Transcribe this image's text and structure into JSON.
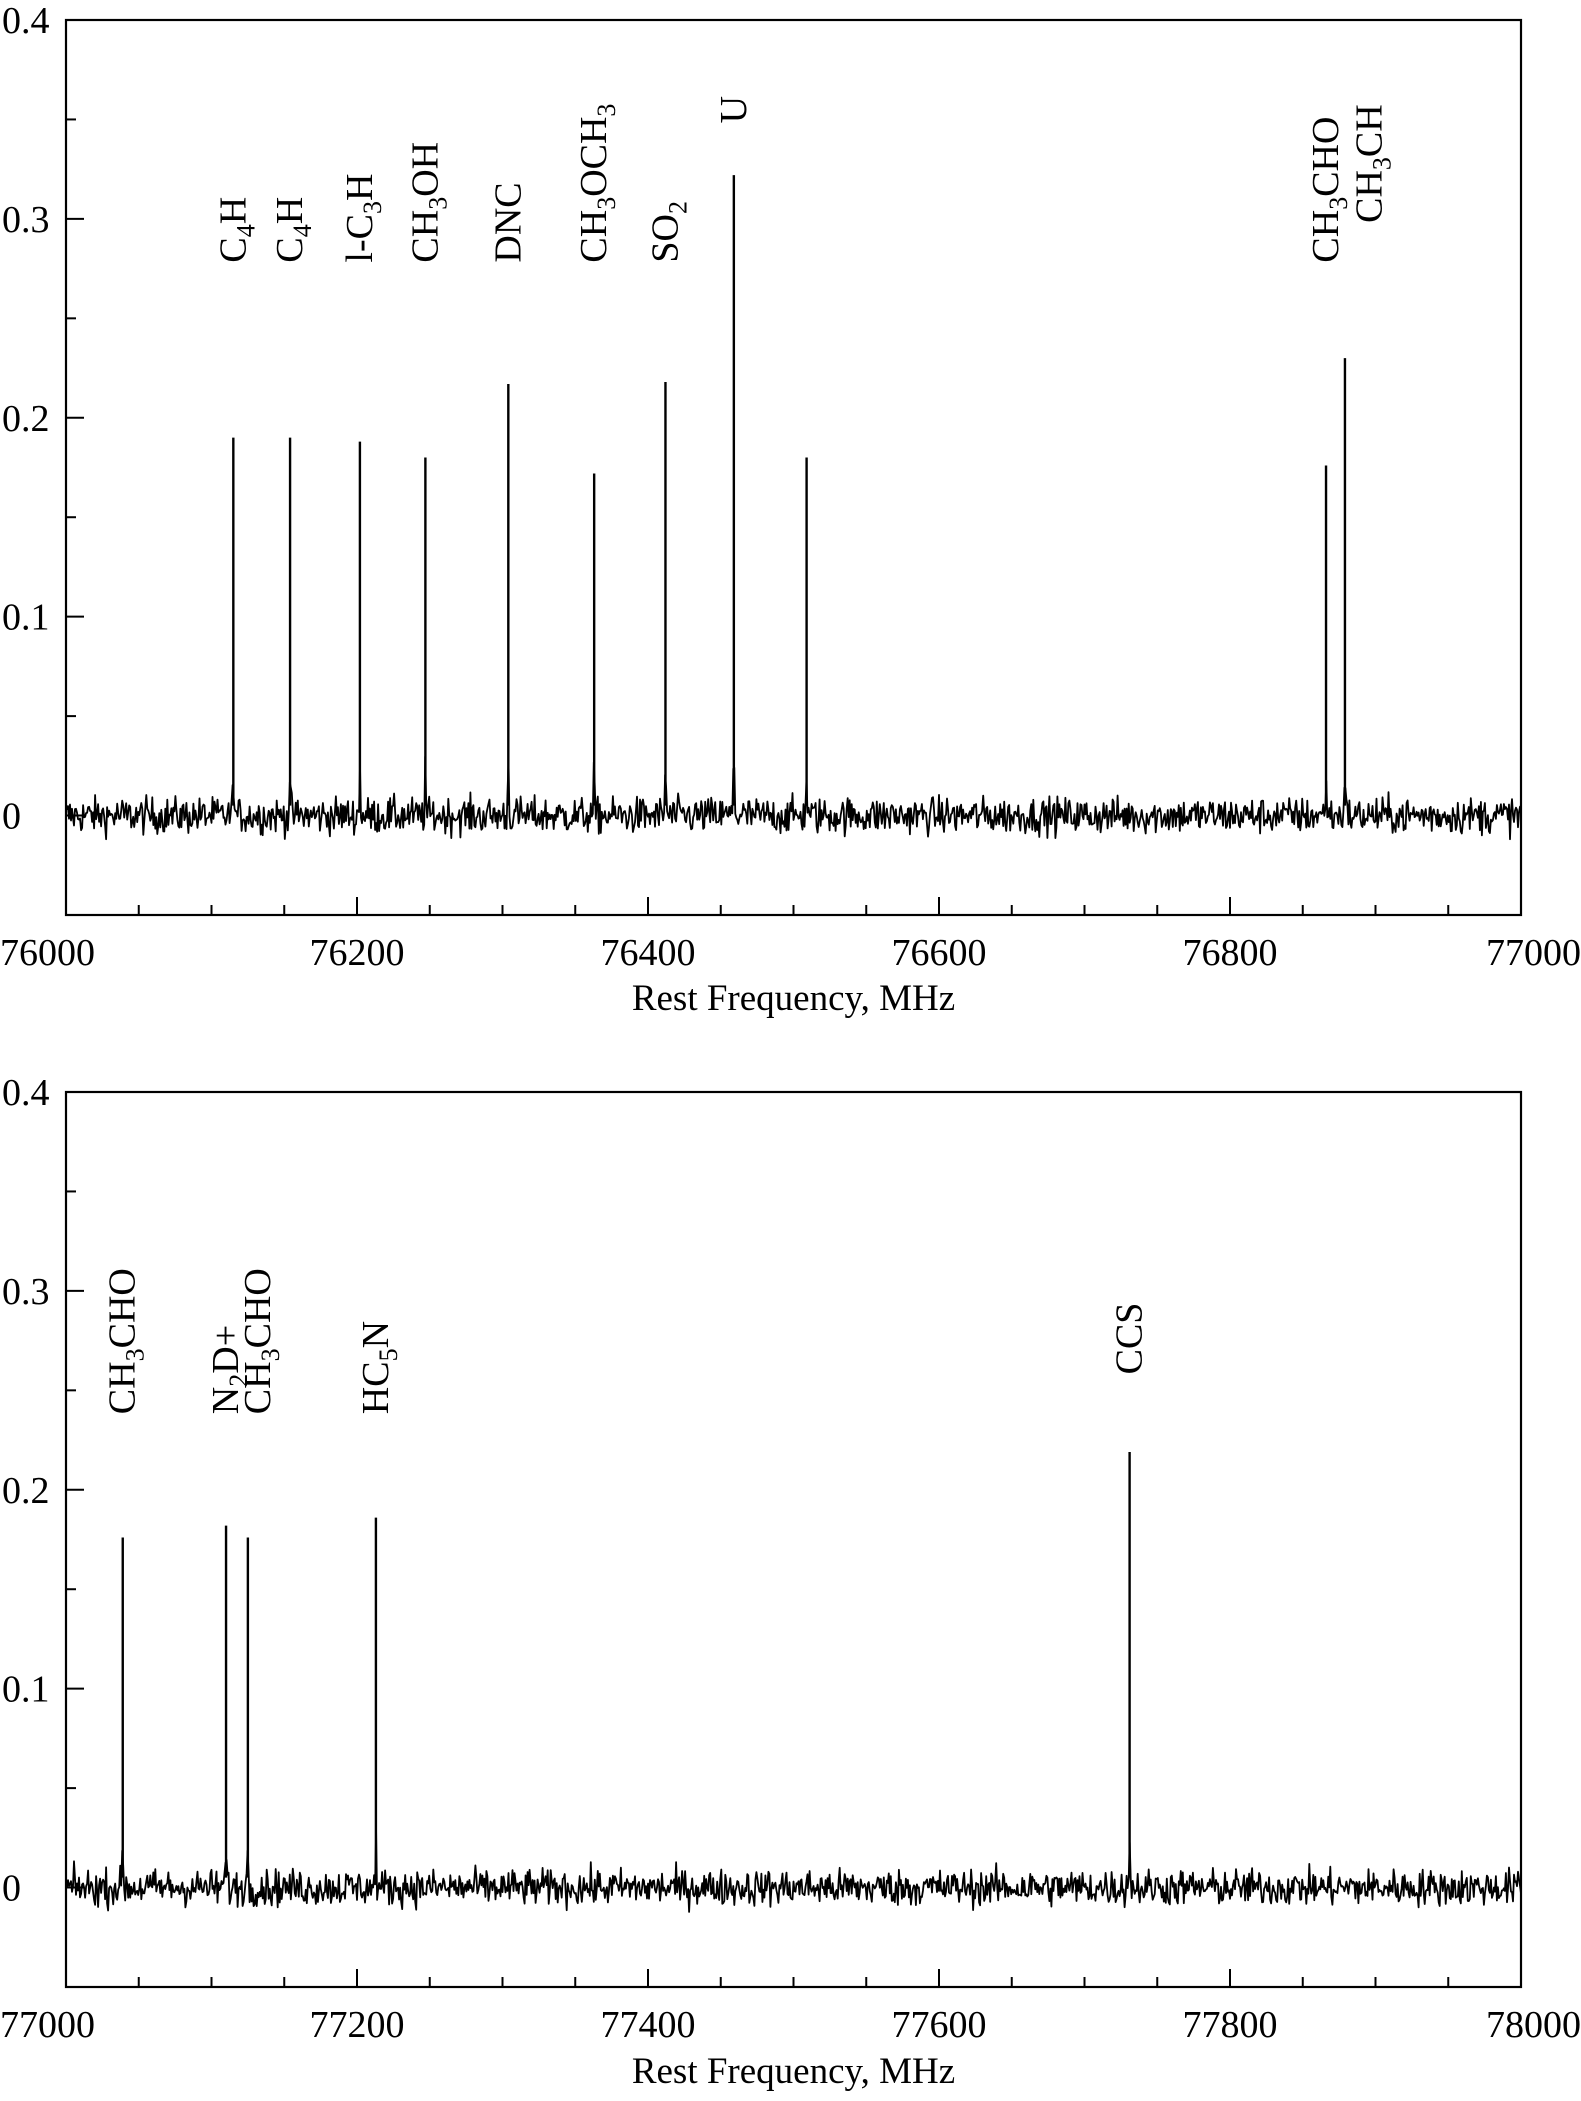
{
  "chart_data": [
    {
      "type": "line",
      "title": "",
      "xlabel": "Rest Frequency, MHz",
      "ylabel": "",
      "xlim": [
        76000,
        77000
      ],
      "ylim": [
        -0.05,
        0.4
      ],
      "x_ticks": [
        "76000",
        "76200",
        "76400",
        "76600",
        "76800",
        "77000"
      ],
      "y_ticks": [
        "0.4",
        "0.3",
        "0.2",
        "0.1",
        "0"
      ],
      "grid": false,
      "lines": [
        {
          "x": 76115,
          "peak": 0.19
        },
        {
          "x": 76154,
          "peak": 0.19
        },
        {
          "x": 76202,
          "peak": 0.188
        },
        {
          "x": 76247,
          "peak": 0.18
        },
        {
          "x": 76304,
          "peak": 0.217
        },
        {
          "x": 76363,
          "peak": 0.172
        },
        {
          "x": 76412,
          "peak": 0.218
        },
        {
          "x": 76459,
          "peak": 0.322
        },
        {
          "x": 76509,
          "peak": 0.18
        },
        {
          "x": 76866,
          "peak": 0.176
        },
        {
          "x": 76879,
          "peak": 0.23
        }
      ],
      "labels": [
        {
          "x": 76115,
          "y": 0.278,
          "parts": [
            {
              "t": "C"
            },
            {
              "t": "4",
              "sub": true
            },
            {
              "t": "H"
            }
          ]
        },
        {
          "x": 76154,
          "y": 0.278,
          "parts": [
            {
              "t": "C"
            },
            {
              "t": "4",
              "sub": true
            },
            {
              "t": "H"
            }
          ]
        },
        {
          "x": 76202,
          "y": 0.278,
          "parts": [
            {
              "t": "l-C"
            },
            {
              "t": "3",
              "sub": true
            },
            {
              "t": "H"
            }
          ]
        },
        {
          "x": 76247,
          "y": 0.278,
          "parts": [
            {
              "t": "CH"
            },
            {
              "t": "3",
              "sub": true
            },
            {
              "t": "OH"
            }
          ]
        },
        {
          "x": 76304,
          "y": 0.278,
          "parts": [
            {
              "t": "DNC"
            }
          ]
        },
        {
          "x": 76363,
          "y": 0.278,
          "parts": [
            {
              "t": "CH"
            },
            {
              "t": "3",
              "sub": true
            },
            {
              "t": "OCH"
            },
            {
              "t": "3",
              "sub": true
            }
          ]
        },
        {
          "x": 76412,
          "y": 0.278,
          "parts": [
            {
              "t": "SO"
            },
            {
              "t": "2",
              "sub": true
            }
          ]
        },
        {
          "x": 76459,
          "y": 0.348,
          "parts": [
            {
              "t": "U"
            }
          ]
        },
        {
          "x": 76866,
          "y": 0.278,
          "parts": [
            {
              "t": "CH"
            },
            {
              "t": "3",
              "sub": true
            },
            {
              "t": "CHO"
            }
          ]
        },
        {
          "x": 76896,
          "y": 0.298,
          "parts": [
            {
              "t": "CH"
            },
            {
              "t": "3",
              "sub": true
            },
            {
              "t": "CH"
            }
          ]
        }
      ]
    },
    {
      "type": "line",
      "title": "",
      "xlabel": "Rest Frequency, MHz",
      "ylabel": "",
      "xlim": [
        77000,
        78000
      ],
      "ylim": [
        -0.05,
        0.4
      ],
      "x_ticks": [
        "77000",
        "77200",
        "77400",
        "77600",
        "77800",
        "78000"
      ],
      "y_ticks": [
        "0.4",
        "0.3",
        "0.2",
        "0.1",
        "0"
      ],
      "grid": false,
      "lines": [
        {
          "x": 77039,
          "peak": 0.176
        },
        {
          "x": 77110,
          "peak": 0.182
        },
        {
          "x": 77125,
          "peak": 0.176
        },
        {
          "x": 77213,
          "peak": 0.186
        },
        {
          "x": 77731,
          "peak": 0.219
        }
      ],
      "labels": [
        {
          "x": 77039,
          "y": 0.238,
          "parts": [
            {
              "t": "CH"
            },
            {
              "t": "3",
              "sub": true
            },
            {
              "t": "CHO"
            }
          ]
        },
        {
          "x": 77110,
          "y": 0.238,
          "parts": [
            {
              "t": "N"
            },
            {
              "t": "2",
              "sub": true
            },
            {
              "t": "D+"
            }
          ]
        },
        {
          "x": 77132,
          "y": 0.238,
          "parts": [
            {
              "t": "CH"
            },
            {
              "t": "3",
              "sub": true
            },
            {
              "t": "CHO"
            }
          ]
        },
        {
          "x": 77213,
          "y": 0.238,
          "parts": [
            {
              "t": "HC"
            },
            {
              "t": "5",
              "sub": true
            },
            {
              "t": "N"
            }
          ]
        },
        {
          "x": 77731,
          "y": 0.258,
          "parts": [
            {
              "t": "CCS"
            }
          ]
        }
      ]
    }
  ]
}
